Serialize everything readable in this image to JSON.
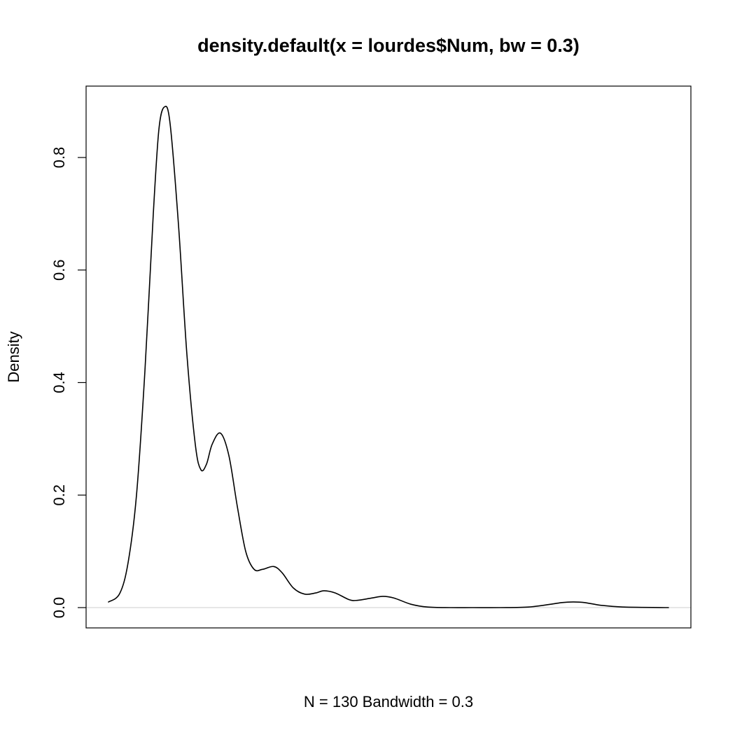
{
  "chart_data": {
    "type": "line",
    "title": "density.default(x = lourdes$Num, bw = 0.3)",
    "xlabel": "N = 130   Bandwidth = 0.3",
    "ylabel": "Density",
    "ylim": [
      0,
      0.9
    ],
    "yticks": [
      0.0,
      0.2,
      0.4,
      0.6,
      0.8
    ],
    "ytick_labels": [
      "0.0",
      "0.2",
      "0.4",
      "0.6",
      "0.8"
    ],
    "xlim": [
      0,
      1
    ],
    "grid": false,
    "legend": "none",
    "baseline": 0,
    "colors": {
      "line": "#000000",
      "baseline": "#cccccc",
      "frame": "#000000"
    },
    "series": [
      {
        "values": [
          [
            0.0,
            0.01
          ],
          [
            0.02,
            0.025
          ],
          [
            0.035,
            0.08
          ],
          [
            0.05,
            0.2
          ],
          [
            0.065,
            0.42
          ],
          [
            0.08,
            0.7
          ],
          [
            0.09,
            0.85
          ],
          [
            0.1,
            0.89
          ],
          [
            0.11,
            0.86
          ],
          [
            0.125,
            0.68
          ],
          [
            0.14,
            0.45
          ],
          [
            0.155,
            0.29
          ],
          [
            0.165,
            0.245
          ],
          [
            0.175,
            0.255
          ],
          [
            0.185,
            0.29
          ],
          [
            0.2,
            0.31
          ],
          [
            0.215,
            0.27
          ],
          [
            0.23,
            0.18
          ],
          [
            0.245,
            0.1
          ],
          [
            0.26,
            0.068
          ],
          [
            0.275,
            0.068
          ],
          [
            0.295,
            0.073
          ],
          [
            0.31,
            0.062
          ],
          [
            0.33,
            0.035
          ],
          [
            0.35,
            0.024
          ],
          [
            0.37,
            0.026
          ],
          [
            0.385,
            0.03
          ],
          [
            0.405,
            0.026
          ],
          [
            0.43,
            0.014
          ],
          [
            0.445,
            0.013
          ],
          [
            0.47,
            0.017
          ],
          [
            0.49,
            0.02
          ],
          [
            0.51,
            0.017
          ],
          [
            0.54,
            0.006
          ],
          [
            0.57,
            0.001
          ],
          [
            0.61,
            0.0
          ],
          [
            0.65,
            0.0
          ],
          [
            0.7,
            0.0
          ],
          [
            0.75,
            0.001
          ],
          [
            0.79,
            0.006
          ],
          [
            0.81,
            0.009
          ],
          [
            0.83,
            0.01
          ],
          [
            0.85,
            0.009
          ],
          [
            0.88,
            0.004
          ],
          [
            0.92,
            0.001
          ],
          [
            1.0,
            0.0
          ]
        ]
      }
    ]
  }
}
